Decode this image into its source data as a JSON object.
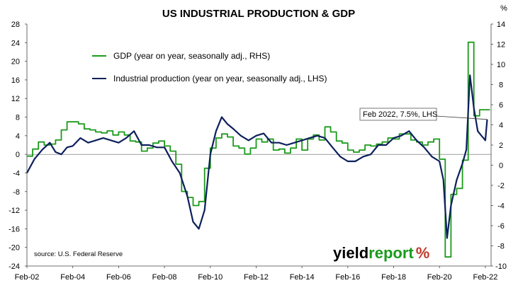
{
  "chart_data": {
    "type": "line",
    "title": "US INDUSTRIAL PRODUCTION & GDP",
    "right_unit": "%",
    "x_range": [
      "Feb-02",
      "Feb-22"
    ],
    "x_ticks": [
      "Feb-02",
      "Feb-04",
      "Feb-06",
      "Feb-08",
      "Feb-10",
      "Feb-12",
      "Feb-14",
      "Feb-16",
      "Feb-18",
      "Feb-20",
      "Feb-22"
    ],
    "y_left": {
      "min": -24,
      "max": 28,
      "ticks": [
        28,
        24,
        20,
        16,
        12,
        8,
        4,
        0,
        -4,
        -8,
        -12,
        -16,
        -20,
        -24
      ]
    },
    "y_right": {
      "min": -10,
      "max": 14,
      "ticks": [
        14,
        12,
        10,
        8,
        6,
        4,
        2,
        0,
        -2,
        -4,
        -6,
        -8,
        -10
      ]
    },
    "grid": false,
    "legend_position": "top-left",
    "series": [
      {
        "name": "GDP (year on year, seasonally adj., RHS)",
        "axis": "right",
        "color": "#1a9a1a",
        "step": true,
        "points": [
          [
            2002.0,
            0.9
          ],
          [
            2002.25,
            1.6
          ],
          [
            2002.5,
            2.3
          ],
          [
            2002.75,
            2.0
          ],
          [
            2003.0,
            2.1
          ],
          [
            2003.25,
            2.5
          ],
          [
            2003.5,
            3.5
          ],
          [
            2003.75,
            4.3
          ],
          [
            2004.0,
            4.3
          ],
          [
            2004.25,
            4.1
          ],
          [
            2004.5,
            3.6
          ],
          [
            2004.75,
            3.5
          ],
          [
            2005.0,
            3.3
          ],
          [
            2005.25,
            3.2
          ],
          [
            2005.5,
            3.4
          ],
          [
            2005.75,
            3.0
          ],
          [
            2006.0,
            3.3
          ],
          [
            2006.25,
            3.0
          ],
          [
            2006.5,
            2.4
          ],
          [
            2006.75,
            2.3
          ],
          [
            2007.0,
            1.4
          ],
          [
            2007.25,
            1.7
          ],
          [
            2007.5,
            2.2
          ],
          [
            2007.75,
            2.4
          ],
          [
            2008.0,
            1.9
          ],
          [
            2008.25,
            1.4
          ],
          [
            2008.5,
            0.1
          ],
          [
            2008.75,
            -2.6
          ],
          [
            2009.0,
            -3.2
          ],
          [
            2009.25,
            -4.0
          ],
          [
            2009.5,
            -3.6
          ],
          [
            2009.75,
            -0.3
          ],
          [
            2010.0,
            1.7
          ],
          [
            2010.25,
            2.7
          ],
          [
            2010.5,
            3.1
          ],
          [
            2010.75,
            2.8
          ],
          [
            2011.0,
            1.9
          ],
          [
            2011.25,
            1.7
          ],
          [
            2011.5,
            1.1
          ],
          [
            2011.75,
            1.7
          ],
          [
            2012.0,
            2.6
          ],
          [
            2012.25,
            2.3
          ],
          [
            2012.5,
            2.6
          ],
          [
            2012.75,
            1.5
          ],
          [
            2013.0,
            1.6
          ],
          [
            2013.25,
            1.2
          ],
          [
            2013.5,
            1.7
          ],
          [
            2013.75,
            2.6
          ],
          [
            2014.0,
            1.5
          ],
          [
            2014.25,
            2.6
          ],
          [
            2014.5,
            3.0
          ],
          [
            2014.75,
            2.5
          ],
          [
            2015.0,
            3.8
          ],
          [
            2015.25,
            3.3
          ],
          [
            2015.5,
            2.4
          ],
          [
            2015.75,
            2.2
          ],
          [
            2016.0,
            1.5
          ],
          [
            2016.25,
            1.3
          ],
          [
            2016.5,
            1.5
          ],
          [
            2016.75,
            2.0
          ],
          [
            2017.0,
            1.9
          ],
          [
            2017.25,
            2.1
          ],
          [
            2017.5,
            2.3
          ],
          [
            2017.75,
            2.7
          ],
          [
            2018.0,
            2.6
          ],
          [
            2018.25,
            3.1
          ],
          [
            2018.5,
            3.1
          ],
          [
            2018.75,
            2.5
          ],
          [
            2019.0,
            2.3
          ],
          [
            2019.25,
            2.0
          ],
          [
            2019.5,
            2.3
          ],
          [
            2019.75,
            2.6
          ],
          [
            2020.0,
            0.6
          ],
          [
            2020.25,
            -9.1
          ],
          [
            2020.5,
            -2.9
          ],
          [
            2020.75,
            -2.3
          ],
          [
            2021.0,
            0.5
          ],
          [
            2021.25,
            12.2
          ],
          [
            2021.5,
            4.9
          ],
          [
            2021.75,
            5.5
          ],
          [
            2022.0,
            5.5
          ]
        ]
      },
      {
        "name": "Industrial production (year on year, seasonally adj., LHS)",
        "axis": "left",
        "color": "#0d1f5c",
        "step": false,
        "points": [
          [
            2002.0,
            -4.0
          ],
          [
            2002.33,
            -1.0
          ],
          [
            2002.67,
            1.0
          ],
          [
            2003.0,
            2.5
          ],
          [
            2003.25,
            0.5
          ],
          [
            2003.5,
            0.0
          ],
          [
            2003.75,
            1.5
          ],
          [
            2004.0,
            1.8
          ],
          [
            2004.33,
            3.5
          ],
          [
            2004.67,
            2.5
          ],
          [
            2005.0,
            3.0
          ],
          [
            2005.33,
            3.5
          ],
          [
            2005.67,
            3.0
          ],
          [
            2006.0,
            2.5
          ],
          [
            2006.33,
            3.5
          ],
          [
            2006.67,
            5.0
          ],
          [
            2007.0,
            2.0
          ],
          [
            2007.33,
            2.0
          ],
          [
            2007.67,
            1.5
          ],
          [
            2008.0,
            1.5
          ],
          [
            2008.33,
            -1.5
          ],
          [
            2008.67,
            -4.0
          ],
          [
            2009.0,
            -9.0
          ],
          [
            2009.25,
            -14.5
          ],
          [
            2009.5,
            -16.0
          ],
          [
            2009.75,
            -12.0
          ],
          [
            2010.0,
            0.0
          ],
          [
            2010.25,
            5.0
          ],
          [
            2010.5,
            8.0
          ],
          [
            2010.75,
            6.5
          ],
          [
            2011.0,
            5.5
          ],
          [
            2011.33,
            4.0
          ],
          [
            2011.67,
            3.0
          ],
          [
            2012.0,
            4.0
          ],
          [
            2012.33,
            4.5
          ],
          [
            2012.67,
            2.5
          ],
          [
            2013.0,
            2.5
          ],
          [
            2013.33,
            2.0
          ],
          [
            2013.67,
            2.5
          ],
          [
            2014.0,
            3.0
          ],
          [
            2014.33,
            3.5
          ],
          [
            2014.67,
            4.0
          ],
          [
            2015.0,
            3.5
          ],
          [
            2015.33,
            1.5
          ],
          [
            2015.67,
            -0.5
          ],
          [
            2016.0,
            -1.5
          ],
          [
            2016.33,
            -1.5
          ],
          [
            2016.67,
            -0.5
          ],
          [
            2017.0,
            0.0
          ],
          [
            2017.33,
            2.0
          ],
          [
            2017.67,
            2.0
          ],
          [
            2018.0,
            3.5
          ],
          [
            2018.33,
            4.0
          ],
          [
            2018.67,
            5.0
          ],
          [
            2019.0,
            3.0
          ],
          [
            2019.33,
            1.5
          ],
          [
            2019.67,
            -0.5
          ],
          [
            2020.0,
            -1.5
          ],
          [
            2020.17,
            -5.5
          ],
          [
            2020.33,
            -18.0
          ],
          [
            2020.5,
            -11.0
          ],
          [
            2020.75,
            -5.5
          ],
          [
            2021.0,
            -2.0
          ],
          [
            2021.17,
            1.0
          ],
          [
            2021.33,
            17.0
          ],
          [
            2021.5,
            10.0
          ],
          [
            2021.67,
            5.0
          ],
          [
            2021.83,
            4.0
          ],
          [
            2021.92,
            3.5
          ],
          [
            2022.0,
            3.0
          ],
          [
            2022.08,
            7.5
          ]
        ]
      }
    ],
    "annotations": [
      {
        "text": "Feb 2022, 7.5%, LHS",
        "x": 2022.08,
        "y": 7.5,
        "axis": "left"
      }
    ],
    "note": "source: U.S. Federal Reserve",
    "brand": {
      "word_main": "yield",
      "word_accent": "report",
      "symbol": "%",
      "main_color": "#000000",
      "accent_color": "#1a9a1a",
      "symbol_color": "#c0392b"
    }
  }
}
